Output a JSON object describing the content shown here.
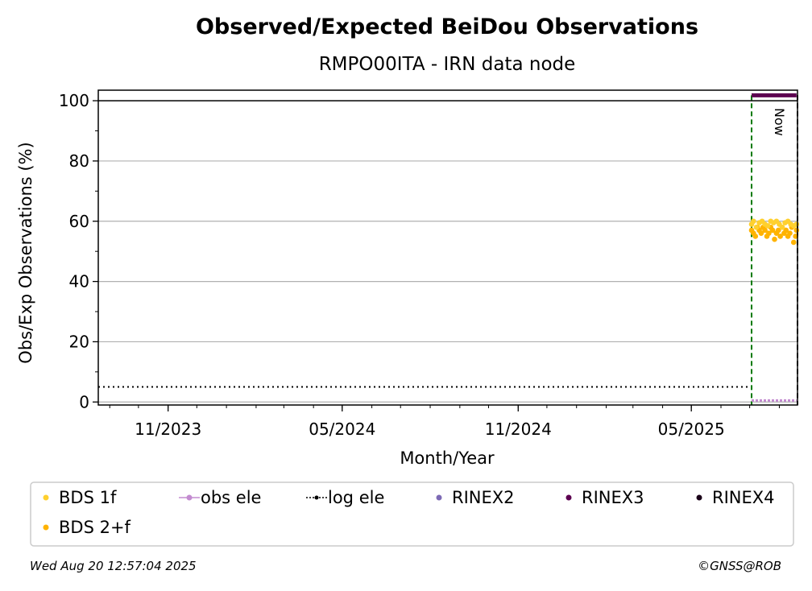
{
  "chart_data": {
    "type": "scatter",
    "title": "Observed/Expected BeiDou Observations",
    "subtitle": "RMPO00ITA - IRN data node",
    "xlabel": "Month/Year",
    "ylabel": "Obs/Exp Observations (%)",
    "x_ticks": [
      "11/2023",
      "05/2024",
      "11/2024",
      "05/2025"
    ],
    "y_ticks": [
      "0",
      "20",
      "40",
      "60",
      "80",
      "100"
    ],
    "xlim": [
      "2023-08-20",
      "2025-08-20"
    ],
    "ylim": [
      -1,
      103.5
    ],
    "grid": "horizontal",
    "legend_position": "bottom",
    "now_label": "Now",
    "markers": {
      "log_ele_start": "2025-07-03",
      "now": "2025-08-20"
    },
    "series": [
      {
        "name": "BDS 1f",
        "color": "#ffd02e",
        "kind": "points",
        "x": [
          "2025-07-03",
          "2025-07-05",
          "2025-07-08",
          "2025-07-11",
          "2025-07-14",
          "2025-07-17",
          "2025-07-20",
          "2025-07-23",
          "2025-07-26",
          "2025-07-29",
          "2025-08-01",
          "2025-08-04",
          "2025-08-07",
          "2025-08-10",
          "2025-08-13",
          "2025-08-16",
          "2025-08-19"
        ],
        "y": [
          59,
          60,
          58,
          59.5,
          60,
          59,
          58.5,
          60,
          59.5,
          60,
          59,
          58,
          59.5,
          60,
          59,
          58.5,
          59
        ]
      },
      {
        "name": "BDS 2+f",
        "color": "#ffb300",
        "kind": "points",
        "x": [
          "2025-07-03",
          "2025-07-05",
          "2025-07-07",
          "2025-07-09",
          "2025-07-11",
          "2025-07-13",
          "2025-07-15",
          "2025-07-17",
          "2025-07-19",
          "2025-07-21",
          "2025-07-23",
          "2025-07-25",
          "2025-07-27",
          "2025-07-29",
          "2025-07-31",
          "2025-08-02",
          "2025-08-04",
          "2025-08-06",
          "2025-08-08",
          "2025-08-10",
          "2025-08-12",
          "2025-08-14",
          "2025-08-16",
          "2025-08-18",
          "2025-08-19"
        ],
        "y": [
          57,
          56,
          55,
          58,
          57,
          56,
          58,
          57,
          55,
          56,
          58,
          57,
          54,
          56,
          57,
          55,
          58,
          56,
          57,
          55,
          56,
          58,
          53,
          55,
          57
        ]
      },
      {
        "name": "obs ele",
        "color": "#c38bd0",
        "kind": "line",
        "x": [
          "2025-07-03",
          "2025-08-19"
        ],
        "y": [
          0.5,
          0.5
        ]
      },
      {
        "name": "log ele",
        "color": "#000000",
        "kind": "dotted",
        "x": [
          "2023-08-20",
          "2025-07-03"
        ],
        "y": [
          5,
          5
        ]
      },
      {
        "name": "RINEX2",
        "color": "#7d6ab5",
        "kind": "points",
        "x": [],
        "y": []
      },
      {
        "name": "RINEX3",
        "color": "#5c0050",
        "kind": "line",
        "x": [
          "2025-07-03",
          "2025-08-19"
        ],
        "y": [
          101.8,
          101.8
        ]
      },
      {
        "name": "RINEX4",
        "color": "#1a0018",
        "kind": "points",
        "x": [],
        "y": []
      }
    ]
  },
  "footer": {
    "timestamp": "Wed Aug 20 12:57:04 2025",
    "credit": "©GNSS@ROB"
  }
}
